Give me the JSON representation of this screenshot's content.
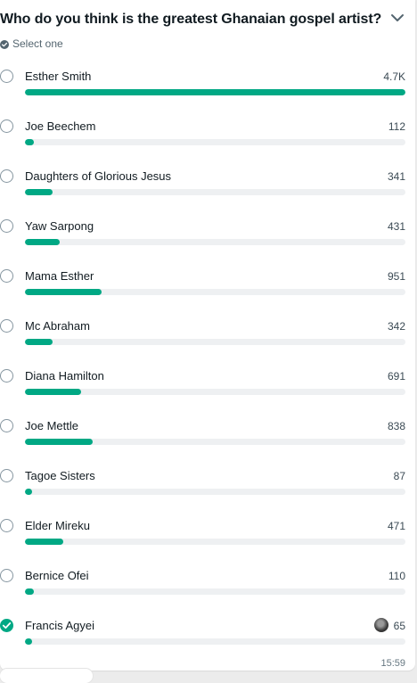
{
  "poll": {
    "question": "Who do you think is the greatest Ghanaian gospel artist?",
    "subtitle": "Select one",
    "max_votes": 4700,
    "options": [
      {
        "label": "Esther Smith",
        "count": "4.7K",
        "votes": 4700,
        "selected": false
      },
      {
        "label": "Joe Beechem",
        "count": "112",
        "votes": 112,
        "selected": false
      },
      {
        "label": "Daughters of Glorious Jesus",
        "count": "341",
        "votes": 341,
        "selected": false
      },
      {
        "label": "Yaw Sarpong",
        "count": "431",
        "votes": 431,
        "selected": false
      },
      {
        "label": "Mama Esther",
        "count": "951",
        "votes": 951,
        "selected": false
      },
      {
        "label": "Mc Abraham",
        "count": "342",
        "votes": 342,
        "selected": false
      },
      {
        "label": "Diana Hamilton",
        "count": "691",
        "votes": 691,
        "selected": false
      },
      {
        "label": "Joe Mettle",
        "count": "838",
        "votes": 838,
        "selected": false
      },
      {
        "label": "Tagoe Sisters",
        "count": "87",
        "votes": 87,
        "selected": false
      },
      {
        "label": "Elder Mireku",
        "count": "471",
        "votes": 471,
        "selected": false
      },
      {
        "label": "Bernice Ofei",
        "count": "110",
        "votes": 110,
        "selected": false
      },
      {
        "label": "Francis Agyei",
        "count": "65",
        "votes": 65,
        "selected": true
      }
    ]
  },
  "message": {
    "time": "15:59"
  },
  "colors": {
    "accent": "#00a884",
    "track": "#eef0f2",
    "radio_border": "#8696a0"
  },
  "icons": {
    "header": "chevron-down-icon",
    "subtitle": "check-circle-icon",
    "voter": "voter-avatar"
  }
}
